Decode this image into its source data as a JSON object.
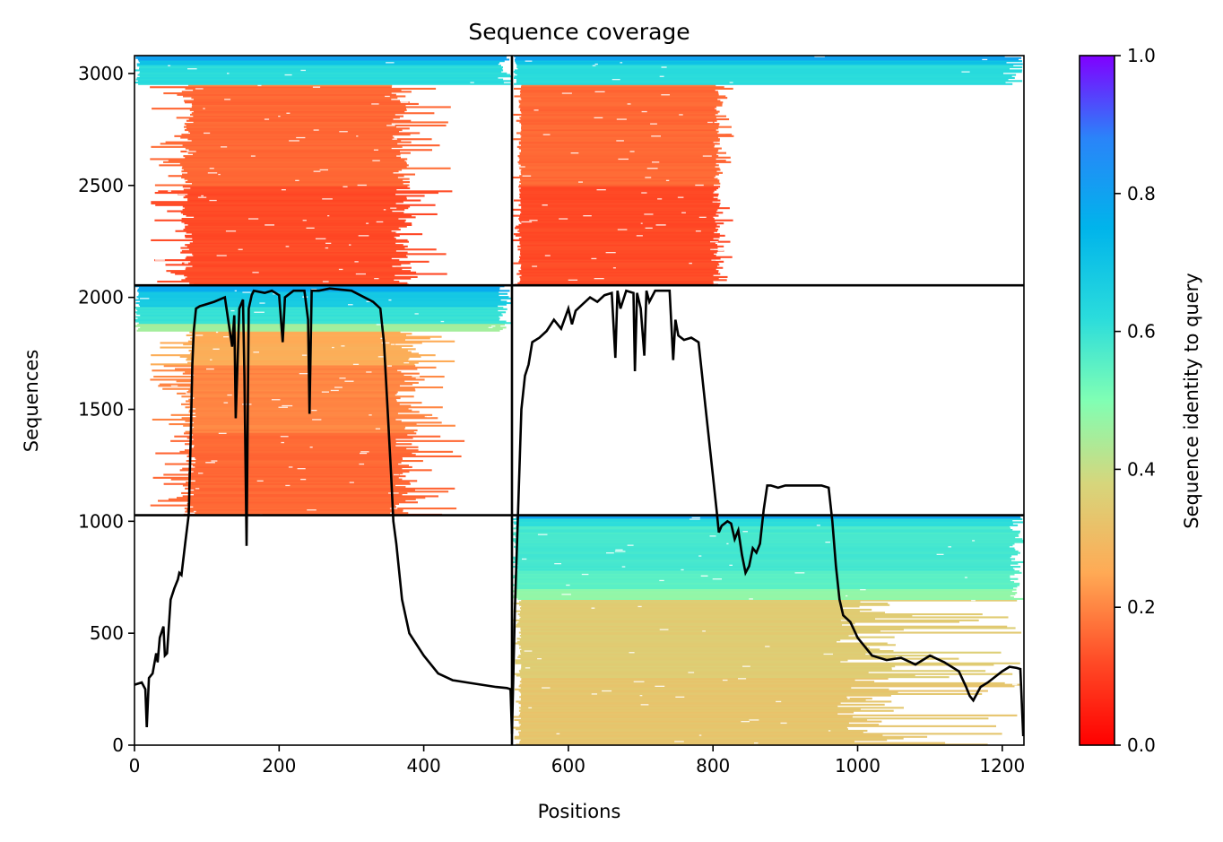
{
  "chart_data": {
    "type": "heatmap",
    "title": "Sequence coverage",
    "xlabel": "Positions",
    "ylabel": "Sequences",
    "xlim": [
      0,
      1230
    ],
    "ylim": [
      0,
      3080
    ],
    "xticks": [
      0,
      200,
      400,
      600,
      800,
      1000,
      1200
    ],
    "yticks": [
      0,
      500,
      1000,
      1500,
      2000,
      2500,
      3000
    ],
    "chain_boundary_x": [
      522
    ],
    "block_boundary_y": [
      1027,
      2054
    ],
    "colorbar": {
      "label": "Sequence identity to query",
      "colormap": "rainbow_r",
      "range": [
        0.0,
        1.0
      ],
      "ticks": [
        0.0,
        0.2,
        0.4,
        0.6,
        0.8,
        1.0
      ]
    },
    "coverage_blocks": [
      {
        "x": [
          0,
          522
        ],
        "y": [
          2054,
          3080
        ],
        "identity_bands": [
          [
            2054,
            0.12
          ],
          [
            2500,
            0.16
          ],
          [
            2940,
            0.2
          ],
          [
            2950,
            0.62
          ],
          [
            3040,
            0.7
          ],
          [
            3060,
            0.8
          ]
        ],
        "core_x": [
          82,
          355
        ],
        "spread_x": [
          20,
          440
        ]
      },
      {
        "x": [
          522,
          1230
        ],
        "y": [
          2054,
          3080
        ],
        "identity_bands": [
          [
            2054,
            0.12
          ],
          [
            2500,
            0.16
          ],
          [
            2940,
            0.2
          ],
          [
            2950,
            0.62
          ],
          [
            3040,
            0.7
          ],
          [
            3060,
            0.8
          ]
        ],
        "core_x": [
          535,
          800
        ],
        "spread_x": [
          522,
          830
        ],
        "tail_x": [
          522,
          1230
        ]
      },
      {
        "x": [
          0,
          522
        ],
        "y": [
          1027,
          2054
        ],
        "identity_bands": [
          [
            1027,
            0.16
          ],
          [
            1400,
            0.2
          ],
          [
            1700,
            0.26
          ],
          [
            1850,
            0.45
          ],
          [
            1880,
            0.6
          ],
          [
            1960,
            0.68
          ],
          [
            2030,
            0.78
          ]
        ],
        "core_x": [
          85,
          360
        ],
        "spread_x": [
          20,
          460
        ]
      },
      {
        "x": [
          522,
          1230
        ],
        "y": [
          0,
          1027
        ],
        "identity_bands": [
          [
            0,
            0.33
          ],
          [
            300,
            0.35
          ],
          [
            650,
            0.48
          ],
          [
            700,
            0.55
          ],
          [
            780,
            0.58
          ],
          [
            980,
            0.62
          ],
          [
            1015,
            0.8
          ]
        ],
        "core_x": [
          535,
          970
        ],
        "spread_x": [
          522,
          1230
        ]
      }
    ],
    "series": [
      {
        "x": [
          0,
          10,
          15,
          17,
          20,
          25,
          30,
          32,
          35,
          40,
          42,
          45,
          50,
          55,
          60,
          62,
          65,
          70,
          75,
          78,
          80,
          82,
          85,
          90,
          100,
          110,
          125,
          135,
          138,
          140,
          145,
          150,
          152,
          155,
          158,
          162,
          165,
          180,
          190,
          200,
          205,
          208,
          220,
          235,
          240,
          242,
          245,
          255,
          270,
          300,
          330,
          340,
          345,
          350,
          355,
          358,
          362,
          370,
          380,
          400,
          420,
          440,
          460,
          480,
          500,
          515,
          520,
          522,
          526,
          535,
          540,
          545,
          550,
          560,
          570,
          580,
          590,
          600,
          605,
          610,
          620,
          630,
          640,
          650,
          660,
          665,
          668,
          672,
          680,
          690,
          692,
          695,
          700,
          705,
          708,
          712,
          720,
          730,
          740,
          745,
          748,
          752,
          760,
          770,
          780,
          790,
          800,
          805,
          808,
          812,
          820,
          825,
          830,
          835,
          840,
          845,
          850,
          855,
          860,
          865,
          870,
          875,
          880,
          890,
          900,
          920,
          950,
          960,
          965,
          970,
          975,
          980,
          990,
          1000,
          1020,
          1040,
          1060,
          1080,
          1100,
          1120,
          1140,
          1150,
          1155,
          1160,
          1170,
          1180,
          1200,
          1210,
          1220,
          1225,
          1229
        ],
        "y": [
          270,
          280,
          250,
          80,
          300,
          320,
          410,
          370,
          480,
          530,
          400,
          410,
          650,
          700,
          740,
          770,
          760,
          900,
          1030,
          1400,
          1700,
          1850,
          1950,
          1960,
          1970,
          1980,
          2000,
          1780,
          1920,
          1460,
          1950,
          1990,
          1650,
          890,
          1950,
          2010,
          2030,
          2020,
          2030,
          2010,
          1800,
          2000,
          2030,
          2030,
          1900,
          1480,
          2030,
          2030,
          2040,
          2030,
          1980,
          1950,
          1800,
          1500,
          1200,
          1000,
          900,
          650,
          500,
          400,
          320,
          290,
          280,
          270,
          260,
          255,
          250,
          50,
          600,
          1500,
          1650,
          1700,
          1800,
          1820,
          1850,
          1900,
          1860,
          1950,
          1880,
          1940,
          1970,
          2000,
          1980,
          2010,
          2020,
          1730,
          2030,
          1950,
          2030,
          2020,
          1670,
          2020,
          1950,
          1740,
          2030,
          1980,
          2030,
          2030,
          2030,
          1720,
          1900,
          1830,
          1810,
          1820,
          1800,
          1500,
          1200,
          1050,
          950,
          980,
          1000,
          990,
          920,
          960,
          850,
          770,
          800,
          880,
          860,
          900,
          1050,
          1160,
          1160,
          1150,
          1160,
          1160,
          1160,
          1150,
          1000,
          800,
          650,
          580,
          550,
          480,
          400,
          380,
          390,
          360,
          400,
          370,
          330,
          260,
          220,
          200,
          260,
          280,
          330,
          350,
          345,
          340,
          40
        ]
      }
    ]
  }
}
